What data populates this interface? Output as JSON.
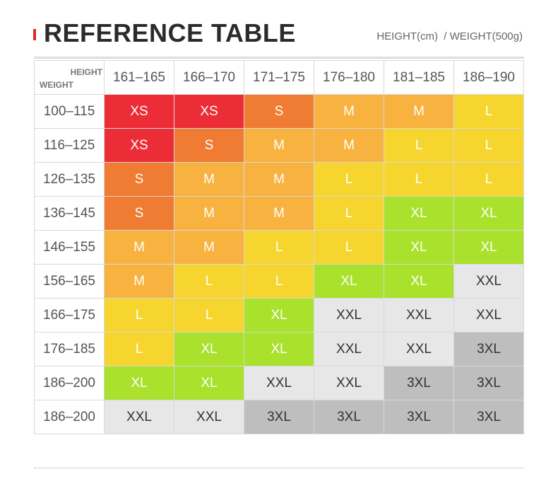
{
  "header": {
    "title": "REFERENCE TABLE",
    "subtitle": "HEIGHT(cm)  / WEIGHT(500g)"
  },
  "table": {
    "corner": {
      "top": "HEIGHT",
      "bottom": "WEIGHT"
    },
    "columns": [
      "161–165",
      "166–170",
      "171–175",
      "176–180",
      "181–185",
      "186–190"
    ],
    "rows": [
      {
        "label": "100–115",
        "sizes": [
          "XS",
          "XS",
          "S",
          "M",
          "M",
          "L"
        ]
      },
      {
        "label": "116–125",
        "sizes": [
          "XS",
          "S",
          "M",
          "M",
          "L",
          "L"
        ]
      },
      {
        "label": "126–135",
        "sizes": [
          "S",
          "M",
          "M",
          "L",
          "L",
          "L"
        ]
      },
      {
        "label": "136–145",
        "sizes": [
          "S",
          "M",
          "M",
          "L",
          "XL",
          "XL"
        ]
      },
      {
        "label": "146–155",
        "sizes": [
          "M",
          "M",
          "L",
          "L",
          "XL",
          "XL"
        ]
      },
      {
        "label": "156–165",
        "sizes": [
          "M",
          "L",
          "L",
          "XL",
          "XL",
          "XXL"
        ]
      },
      {
        "label": "166–175",
        "sizes": [
          "L",
          "L",
          "XL",
          "XXL",
          "XXL",
          "XXL"
        ]
      },
      {
        "label": "176–185",
        "sizes": [
          "L",
          "XL",
          "XL",
          "XXL",
          "XXL",
          "3XL"
        ]
      },
      {
        "label": "186–200",
        "sizes": [
          "XL",
          "XL",
          "XXL",
          "XXL",
          "3XL",
          "3XL"
        ]
      },
      {
        "label": "186–200",
        "sizes": [
          "XXL",
          "XXL",
          "3XL",
          "3XL",
          "3XL",
          "3XL"
        ]
      }
    ],
    "size_colors": {
      "XS": {
        "bg": "#ec2d37",
        "fg": "#ffffff"
      },
      "S": {
        "bg": "#f07b33",
        "fg": "#ffffff"
      },
      "M": {
        "bg": "#f8b240",
        "fg": "#ffffff"
      },
      "L": {
        "bg": "#f6d62e",
        "fg": "#ffffff"
      },
      "XL": {
        "bg": "#a9e12c",
        "fg": "#ffffff"
      },
      "XXL": {
        "bg": "#e7e7e7",
        "fg": "#333333"
      },
      "3XL": {
        "bg": "#bebebe",
        "fg": "#333333"
      }
    }
  }
}
